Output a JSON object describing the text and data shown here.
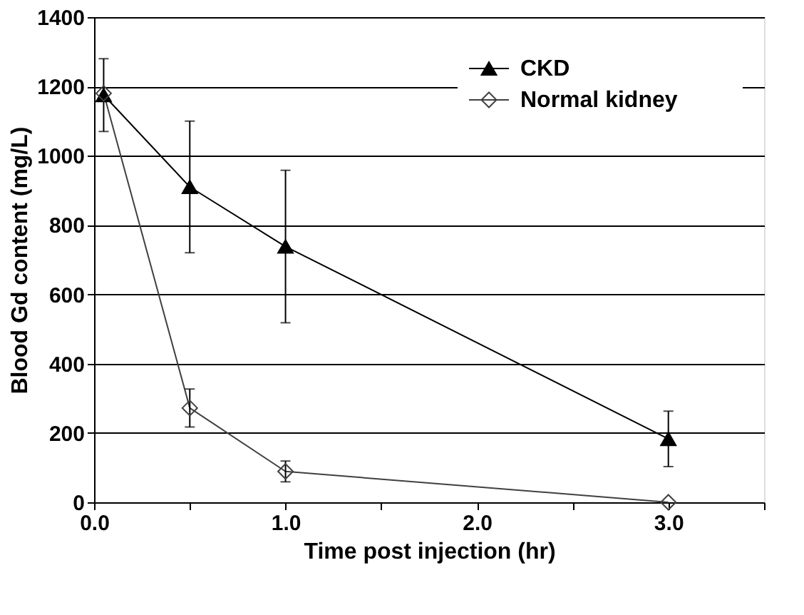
{
  "chart_data": {
    "type": "line",
    "xlabel": "Time post injection (hr)",
    "ylabel": "Blood Gd content (mg/L)",
    "x": [
      0.05,
      0.5,
      1.0,
      3.0
    ],
    "series": [
      {
        "name": "CKD",
        "color": "#000000",
        "marker": "triangle",
        "values": [
          1175,
          910,
          738,
          183
        ],
        "errors": [
          105,
          190,
          220,
          80
        ]
      },
      {
        "name": "Normal kidney",
        "color": "#404040",
        "marker": "diamond",
        "values": [
          1180,
          272,
          89,
          0
        ],
        "errors": [
          null,
          55,
          30,
          null
        ]
      }
    ],
    "xlim": [
      0,
      3.5
    ],
    "xticks": [
      {
        "value": 0,
        "label": "0.0"
      },
      {
        "value": 0.5,
        "label": null
      },
      {
        "value": 1,
        "label": "1.0"
      },
      {
        "value": 1.5,
        "label": null
      },
      {
        "value": 2,
        "label": "2.0"
      },
      {
        "value": 2.5,
        "label": null
      },
      {
        "value": 3,
        "label": "3.0"
      },
      {
        "value": 3.5,
        "label": null
      }
    ],
    "ylim": [
      0,
      1400
    ],
    "yticks": [
      0,
      200,
      400,
      600,
      800,
      1000,
      1200,
      1400
    ],
    "grid": "y",
    "legend": "top right",
    "line_style": "solid"
  }
}
